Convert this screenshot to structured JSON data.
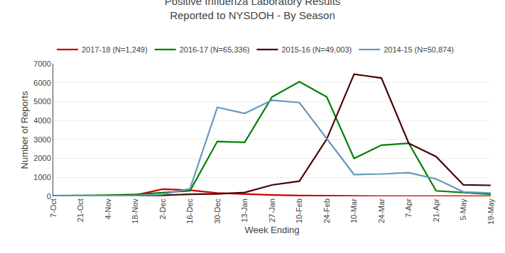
{
  "chart_data": {
    "type": "line",
    "title": "Positive Influenza Laboratory Results\nReported to NYSDOH - By Season",
    "xlabel": "Week Ending",
    "ylabel": "Number of Reports",
    "categories": [
      "7-Oct",
      "21-Oct",
      "4-Nov",
      "18-Nov",
      "2-Dec",
      "16-Dec",
      "30-Dec",
      "13-Jan",
      "27-Jan",
      "10-Feb",
      "24-Feb",
      "10-Mar",
      "24-Mar",
      "7-Apr",
      "21-Apr",
      "5-May",
      "19-May"
    ],
    "series": [
      {
        "name": "2017-18 (N=1,249)",
        "color": "#CC0000",
        "values": [
          10,
          20,
          30,
          60,
          380,
          320,
          170,
          110,
          70,
          40,
          20,
          10,
          5,
          3,
          2,
          2,
          2
        ]
      },
      {
        "name": "2016-17 (N=65,336)",
        "color": "#008000",
        "values": [
          30,
          40,
          60,
          100,
          200,
          290,
          2900,
          2850,
          5250,
          6050,
          5250,
          2000,
          2700,
          2800,
          290,
          190,
          110
        ]
      },
      {
        "name": "2015-16 (N=49,003)",
        "color": "#4B0000",
        "values": [
          15,
          20,
          25,
          35,
          55,
          110,
          130,
          200,
          600,
          800,
          3020,
          6450,
          6250,
          2800,
          2100,
          600,
          580
        ]
      },
      {
        "name": "2014-15 (N=50,874)",
        "color": "#6699BB",
        "values": [
          20,
          25,
          30,
          40,
          100,
          400,
          4700,
          4380,
          5080,
          4950,
          3050,
          1150,
          1180,
          1250,
          920,
          230,
          170
        ]
      }
    ],
    "ylim": [
      0,
      7000
    ],
    "yticks": [
      0,
      1000,
      2000,
      3000,
      4000,
      5000,
      6000,
      7000
    ],
    "grid": "y",
    "legend": "upper left"
  }
}
